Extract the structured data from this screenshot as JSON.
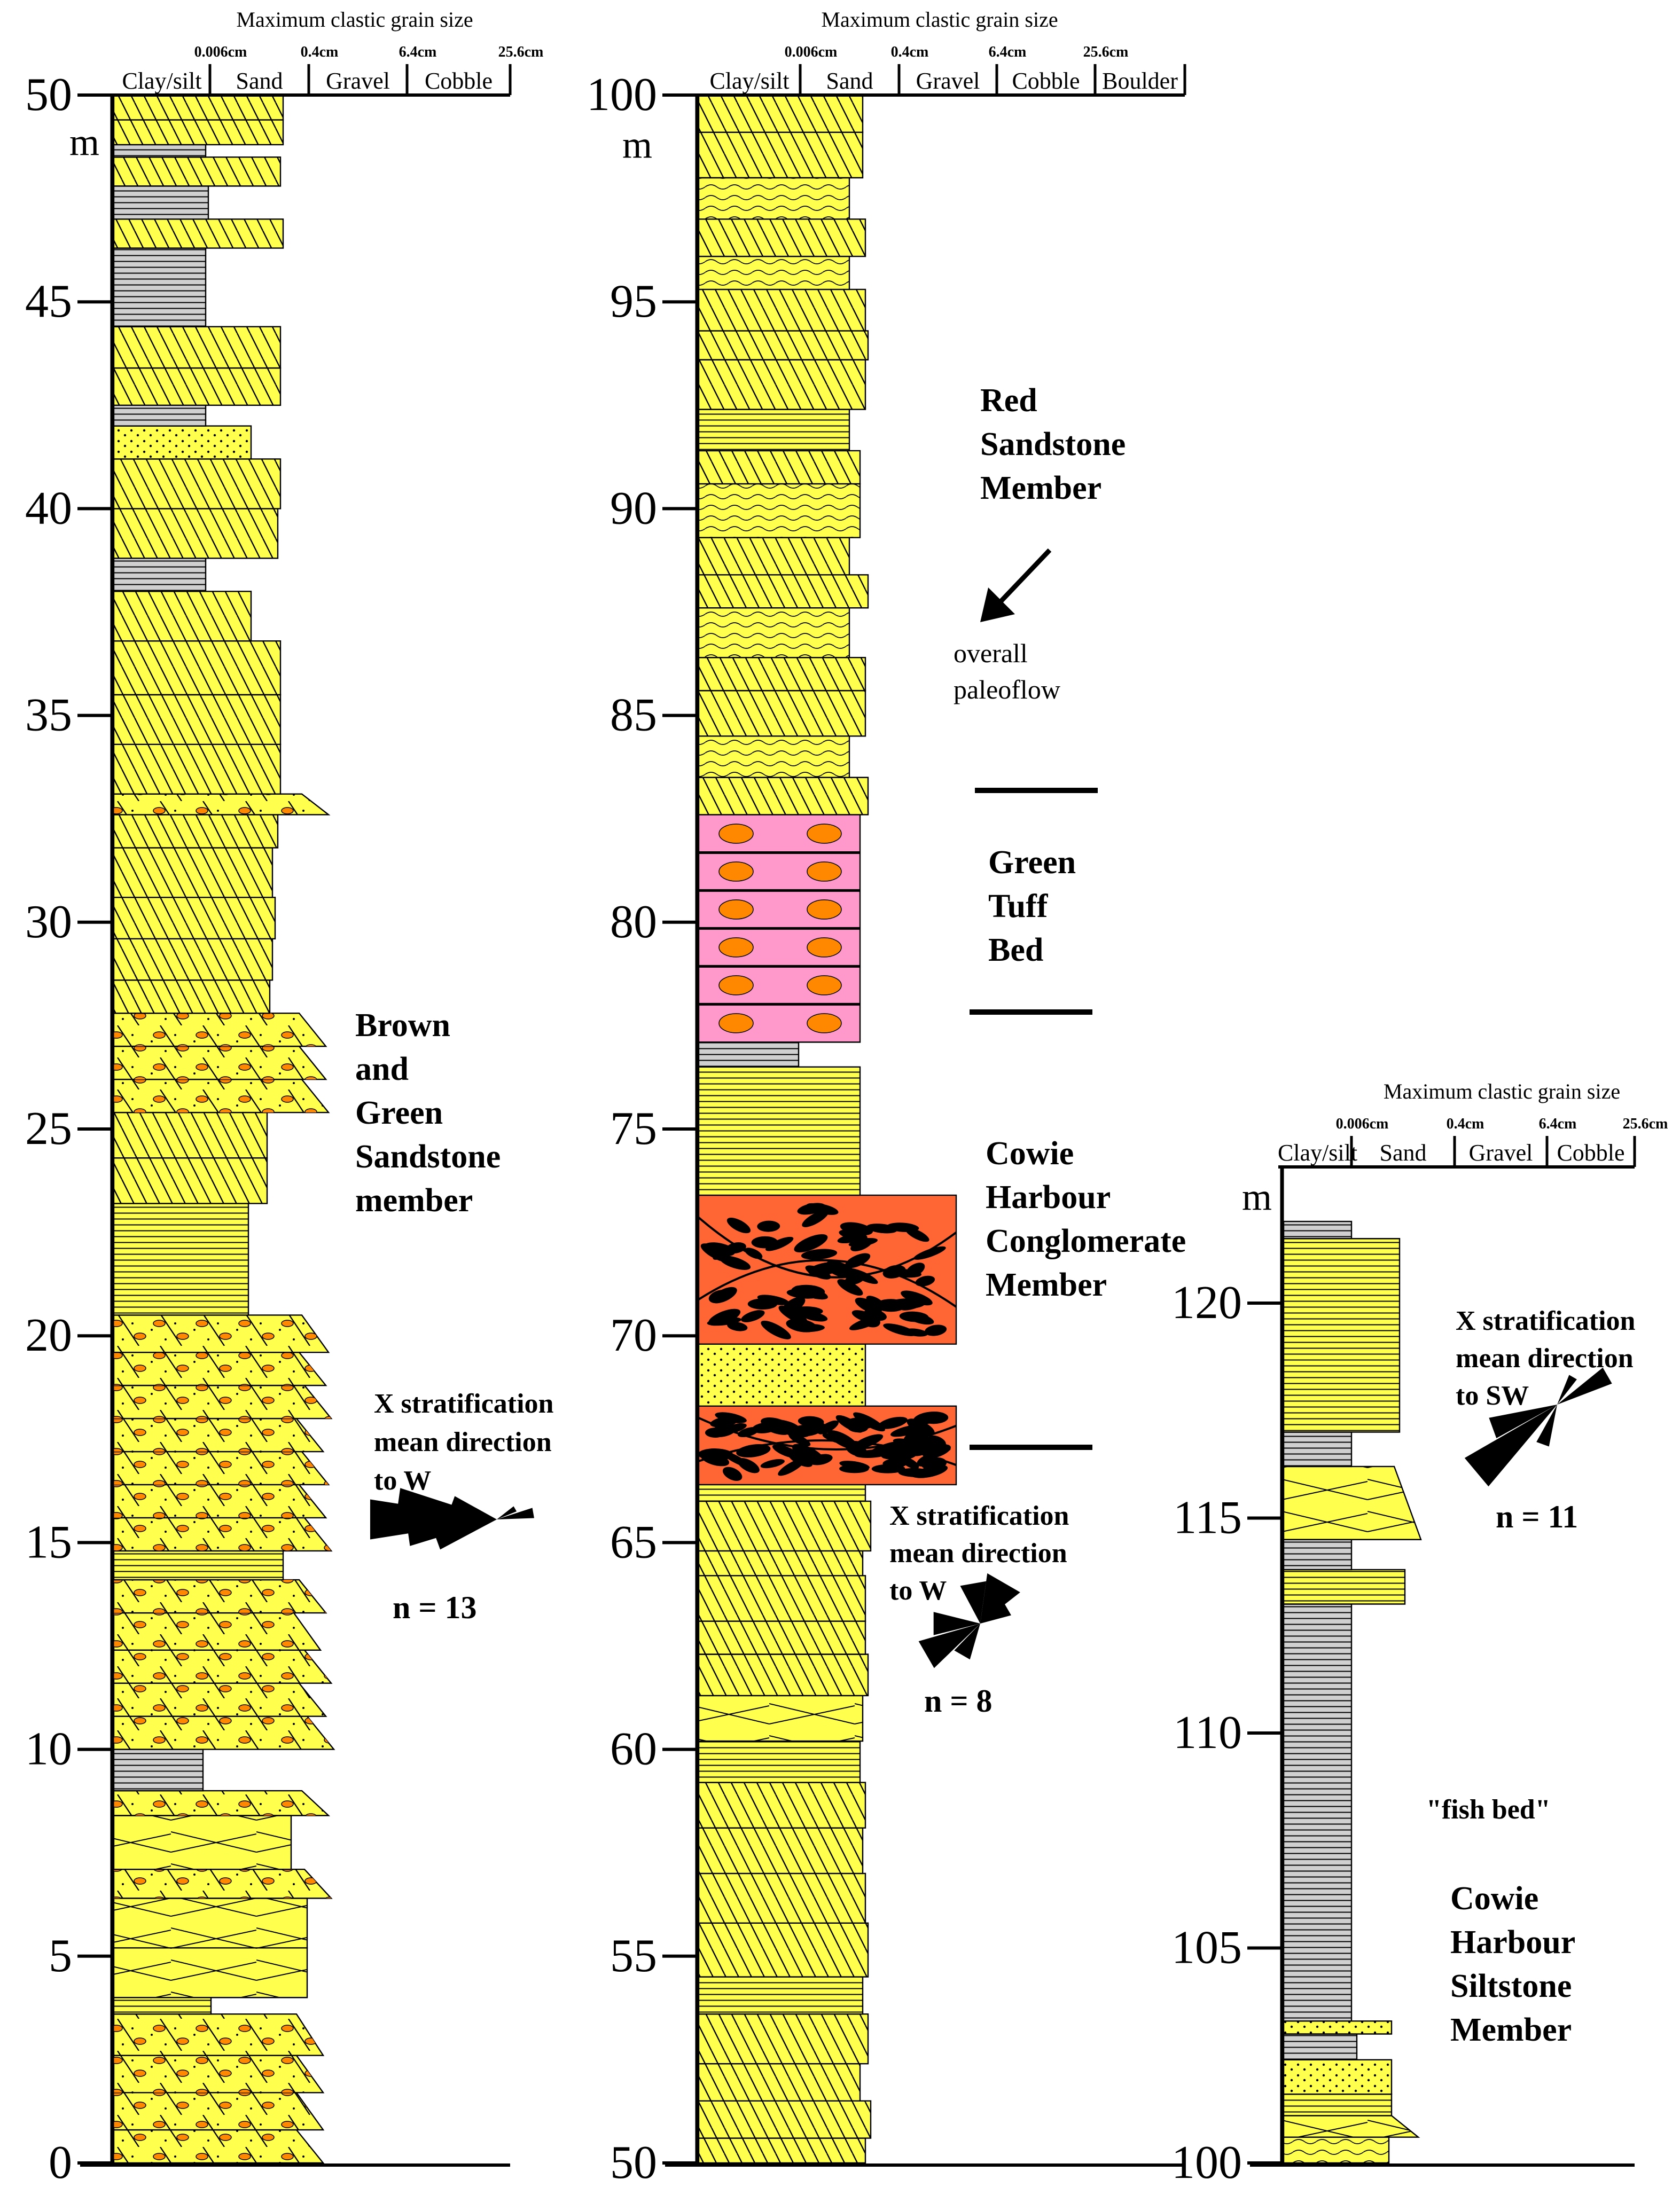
{
  "colors": {
    "sandstone": "#ffff4d",
    "siltstone": "#d0d0d0",
    "tuff": "#ff99cc",
    "conglomerate": "#ff6633",
    "pebble": "#ff8800",
    "clast": "#000000",
    "outline": "#000000"
  },
  "header_title": "Maximum clastic grain size",
  "grain_classes": [
    "Clay/silt",
    "Sand",
    "Gravel",
    "Cobble",
    "Boulder"
  ],
  "grain_boundaries": [
    "0.006cm",
    "0.4cm",
    "6.4cm",
    "25.6cm"
  ],
  "unit": "m",
  "columns": [
    {
      "id": "col1",
      "ticks": [
        "0",
        "5",
        "10",
        "15",
        "20",
        "25",
        "30",
        "35",
        "40",
        "45",
        "50"
      ],
      "classes_shown": 4
    },
    {
      "id": "col2",
      "ticks": [
        "50",
        "55",
        "60",
        "65",
        "70",
        "75",
        "80",
        "85",
        "90",
        "95",
        "100"
      ],
      "classes_shown": 5
    },
    {
      "id": "col3",
      "ticks": [
        "100",
        "105",
        "110",
        "115",
        "120"
      ],
      "classes_shown": 4
    }
  ],
  "labels": {
    "brown_green": [
      "Brown",
      "and",
      "Green",
      "Sandstone",
      "member"
    ],
    "red_sandstone": [
      "Red",
      "Sandstone",
      "Member"
    ],
    "paleoflow": [
      "overall",
      "paleoflow"
    ],
    "green_tuff": [
      "Green",
      "Tuff",
      "Bed"
    ],
    "cowie_conglomerate": [
      "Cowie",
      "Harbour",
      "Conglomerate",
      "Member"
    ],
    "cowie_siltstone": [
      "Cowie",
      "Harbour",
      "Siltstone",
      "Member"
    ],
    "fish_bed": "\"fish bed\"",
    "xstrat_col1": [
      "X stratification",
      "mean direction",
      "to W"
    ],
    "n_col1": "n = 13",
    "xstrat_col2": [
      "X stratification",
      "mean direction",
      "to W"
    ],
    "n_col2": "n = 8",
    "xstrat_col3": [
      "X stratification",
      "mean direction",
      "to SW"
    ],
    "n_col3": "n = 11"
  }
}
